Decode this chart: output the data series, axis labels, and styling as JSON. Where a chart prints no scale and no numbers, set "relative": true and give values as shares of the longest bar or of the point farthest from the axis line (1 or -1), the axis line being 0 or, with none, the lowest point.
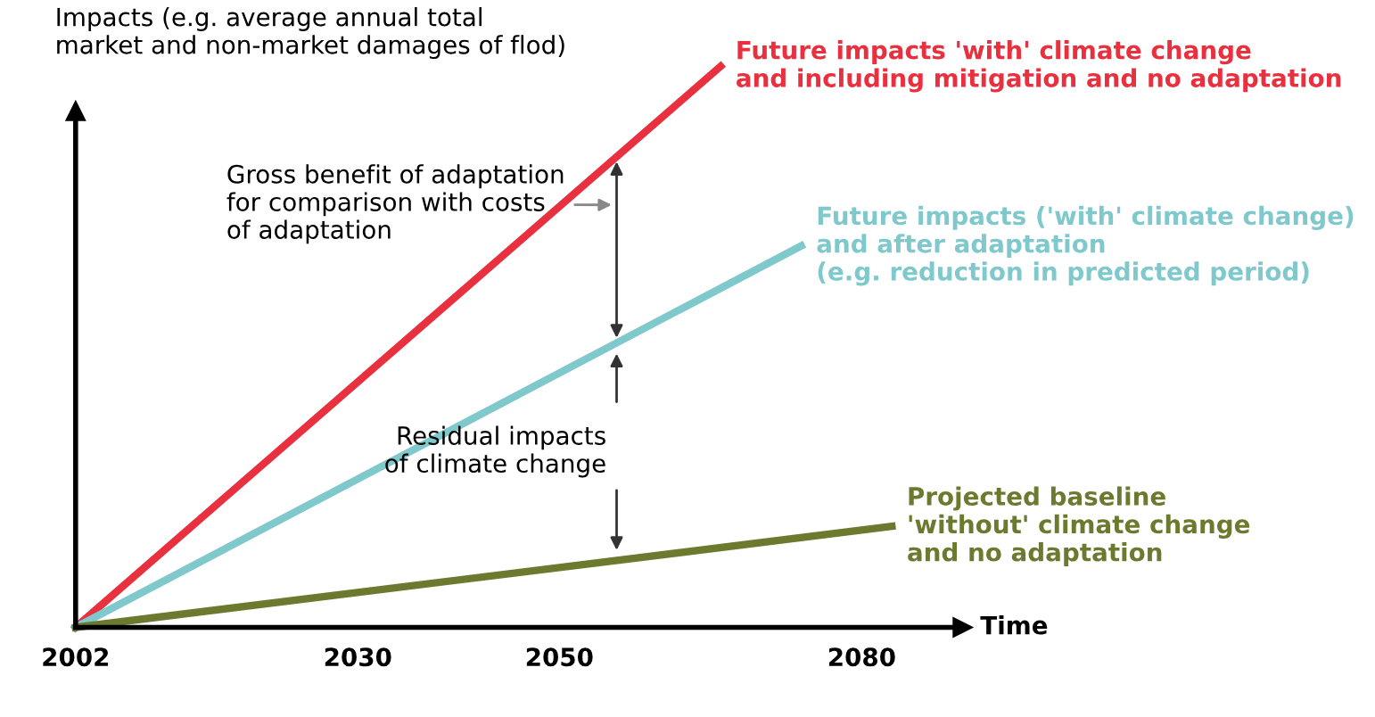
{
  "chart_data": {
    "type": "line",
    "relative": true,
    "ylabel": "Impacts (e.g. average annual total\nmarket and non-market damages of flod)",
    "xlabel": "Time",
    "xlim": [
      2002,
      2090
    ],
    "xticks": [
      2002,
      2030,
      2050,
      2080
    ],
    "series": [
      {
        "name": "Future impacts 'with' climate change\nand including mitigation and no adaptation",
        "color": "#e8303f",
        "x": [
          2002,
          2066
        ],
        "values": [
          0,
          1
        ]
      },
      {
        "name": "Future impacts ('with' climate change)\nand after adaptation\n(e.g. reduction in predicted period)",
        "color": "#7fc8cc",
        "x": [
          2002,
          2074
        ],
        "values": [
          0,
          0.68
        ]
      },
      {
        "name": "Projected baseline\n'without' climate change\nand no adaptation",
        "color": "#6b7a2e",
        "x": [
          2002,
          2083
        ],
        "values": [
          0,
          0.18
        ]
      }
    ],
    "annotations": [
      "Gross benefit of adaptation\nfor comparison with costs\nof adaptation",
      "Residual impacts\nof climate change"
    ],
    "grid": false,
    "marker": "none",
    "line_style": "solid"
  }
}
